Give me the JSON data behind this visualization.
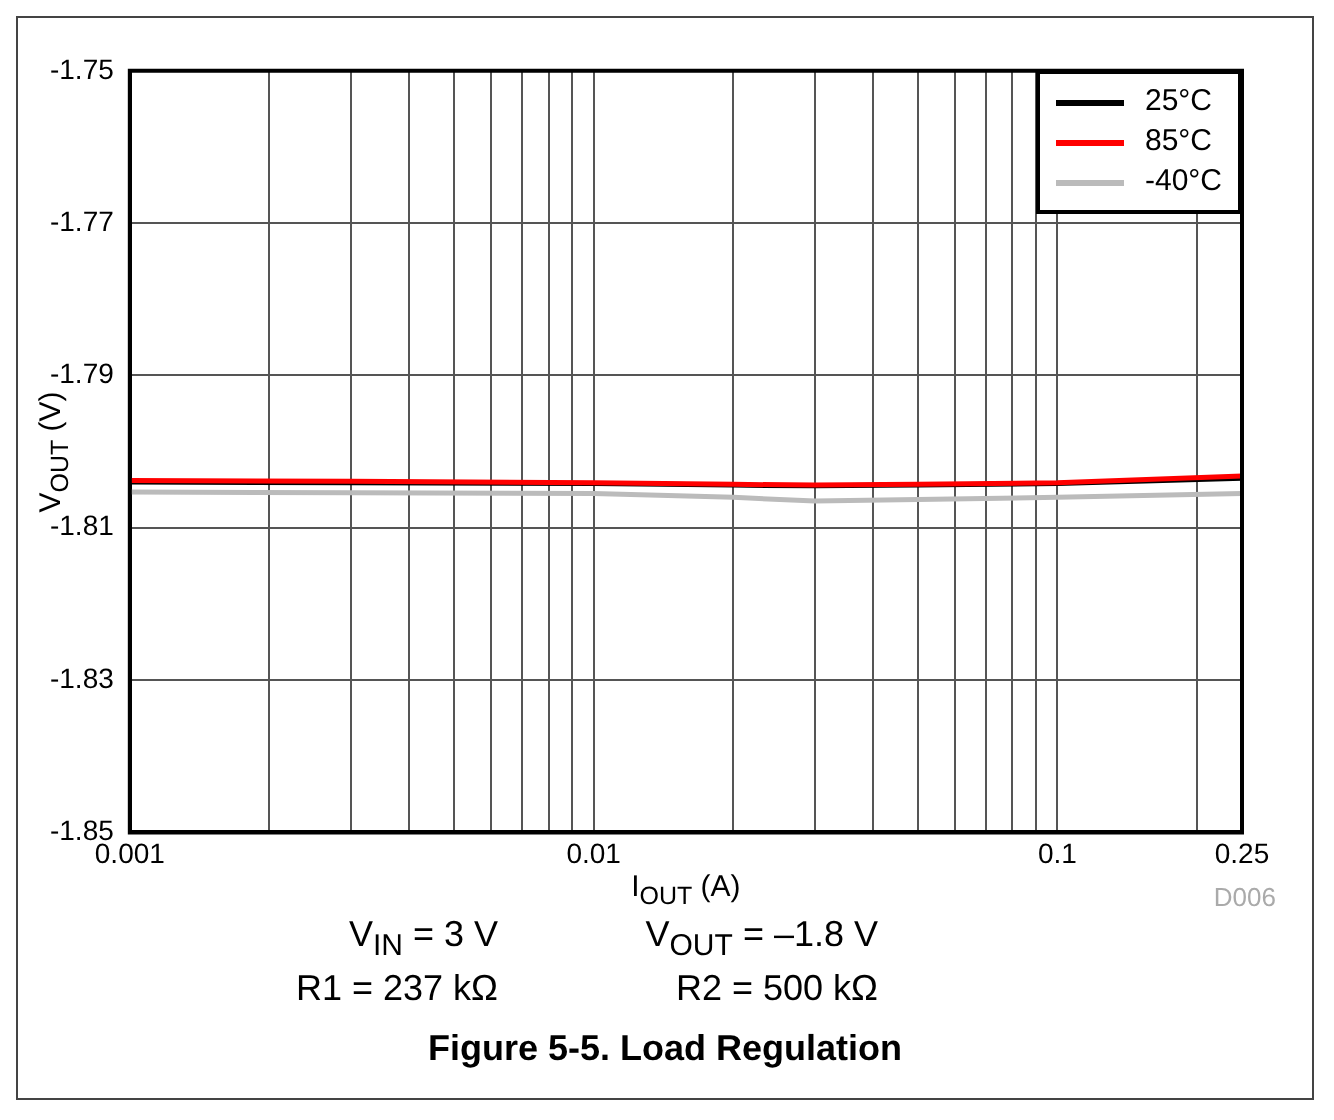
{
  "chart_data": {
    "type": "line",
    "title": "Figure 5-5. Load Regulation",
    "xlabel": "I$_{OUT}$ (A)",
    "ylabel": "V$_{OUT}$ (V)",
    "annotations": [
      "V$_{IN}$ = 3 V",
      "V$_{OUT}$ = –1.8 V",
      "R1 = 237 kΩ",
      "R2 = 500 kΩ",
      "D006"
    ],
    "x": [
      0.001,
      0.003,
      0.01,
      0.02,
      0.03,
      0.05,
      0.1,
      0.25
    ],
    "series": [
      {
        "name": "25°C",
        "color": "#000000",
        "values": [
          -1.804,
          -1.8041,
          -1.8042,
          -1.8044,
          -1.8045,
          -1.8044,
          -1.8042,
          -1.8035
        ]
      },
      {
        "name": "85°C",
        "color": "#ff0000",
        "values": [
          -1.8038,
          -1.8039,
          -1.8041,
          -1.8043,
          -1.8044,
          -1.8043,
          -1.8041,
          -1.8032
        ]
      },
      {
        "name": "-40°C",
        "color": "#bbbbbb",
        "values": [
          -1.8053,
          -1.8054,
          -1.8055,
          -1.806,
          -1.8065,
          -1.8063,
          -1.806,
          -1.8055
        ]
      }
    ],
    "log": "x",
    "xlim": [
      0.001,
      0.25
    ],
    "ylim": [
      -1.85,
      -1.75
    ],
    "xticks": [
      0.001,
      {
        "value": 0.002,
        "label": null
      },
      {
        "value": 0.003,
        "label": null
      },
      {
        "value": 0.004,
        "label": null
      },
      {
        "value": 0.005,
        "label": null
      },
      {
        "value": 0.006,
        "label": null
      },
      {
        "value": 0.007,
        "label": null
      },
      {
        "value": 0.008,
        "label": null
      },
      {
        "value": 0.009,
        "label": null
      },
      0.01,
      {
        "value": 0.02,
        "label": null
      },
      {
        "value": 0.03,
        "label": null
      },
      {
        "value": 0.04,
        "label": null
      },
      {
        "value": 0.05,
        "label": null
      },
      {
        "value": 0.06,
        "label": null
      },
      {
        "value": 0.07,
        "label": null
      },
      {
        "value": 0.08,
        "label": null
      },
      {
        "value": 0.09,
        "label": null
      },
      0.1,
      {
        "value": 0.2,
        "label": null
      },
      0.25
    ],
    "yticks": [
      -1.85,
      -1.83,
      -1.81,
      -1.79,
      -1.77,
      -1.75
    ],
    "grid": true,
    "legend": "top right",
    "marker": "none",
    "line_style": "solid"
  }
}
